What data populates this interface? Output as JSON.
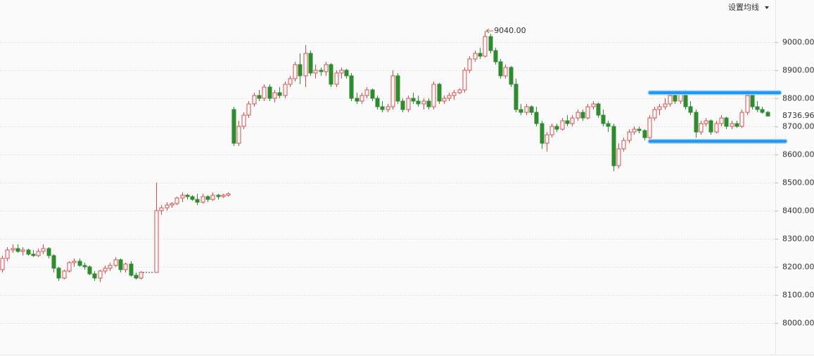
{
  "chart_data": {
    "type": "candlestick",
    "menu_label": "设置均线",
    "up_color": "#d94a4a",
    "down_color": "#2e8b2e",
    "ylim": [
      7880,
      9150
    ],
    "yticks": [
      {
        "value": 8000,
        "label": "8000.00"
      },
      {
        "value": 8100,
        "label": "8100.00"
      },
      {
        "value": 8200,
        "label": "8200.00"
      },
      {
        "value": 8300,
        "label": "8300.00"
      },
      {
        "value": 8400,
        "label": "8400.00"
      },
      {
        "value": 8500,
        "label": "8500.00"
      },
      {
        "value": 8600,
        "label": "8600.00"
      },
      {
        "value": 8700,
        "label": "8700.00"
      },
      {
        "value": 8800,
        "label": "8800.00"
      },
      {
        "value": 8900,
        "label": "8900.00"
      },
      {
        "value": 9000,
        "label": "9000.00"
      }
    ],
    "grid": true,
    "peak": {
      "value": 9040,
      "label": "9040.00"
    },
    "last_price": {
      "value": 8736.96,
      "label": "8736.96"
    },
    "levels": [
      {
        "value": 8820,
        "color": "#2196f3"
      },
      {
        "value": 8647,
        "color": "#2196f3"
      }
    ],
    "ohlc": [
      [
        8190,
        8240,
        8180,
        8230
      ],
      [
        8230,
        8270,
        8220,
        8260
      ],
      [
        8260,
        8280,
        8250,
        8265
      ],
      [
        8265,
        8280,
        8250,
        8255
      ],
      [
        8255,
        8270,
        8240,
        8260
      ],
      [
        8260,
        8265,
        8240,
        8245
      ],
      [
        8245,
        8260,
        8235,
        8240
      ],
      [
        8240,
        8265,
        8235,
        8255
      ],
      [
        8255,
        8280,
        8245,
        8265
      ],
      [
        8265,
        8270,
        8230,
        8240
      ],
      [
        8240,
        8245,
        8180,
        8195
      ],
      [
        8195,
        8200,
        8150,
        8160
      ],
      [
        8160,
        8190,
        8155,
        8185
      ],
      [
        8185,
        8220,
        8180,
        8215
      ],
      [
        8215,
        8230,
        8200,
        8220
      ],
      [
        8220,
        8230,
        8200,
        8205
      ],
      [
        8205,
        8215,
        8190,
        8200
      ],
      [
        8200,
        8205,
        8170,
        8175
      ],
      [
        8175,
        8185,
        8150,
        8160
      ],
      [
        8160,
        8190,
        8145,
        8185
      ],
      [
        8185,
        8205,
        8175,
        8195
      ],
      [
        8195,
        8215,
        8185,
        8205
      ],
      [
        8205,
        8235,
        8200,
        8225
      ],
      [
        8225,
        8230,
        8180,
        8190
      ],
      [
        8190,
        8215,
        8180,
        8210
      ],
      [
        8210,
        8220,
        8165,
        8170
      ],
      [
        8170,
        8180,
        8155,
        8160
      ],
      [
        8160,
        8185,
        8155,
        8180
      ],
      null,
      null,
      [
        8180,
        8500,
        8180,
        8400
      ],
      [
        8400,
        8420,
        8385,
        8410
      ],
      [
        8410,
        8430,
        8400,
        8420
      ],
      [
        8420,
        8430,
        8410,
        8425
      ],
      [
        8425,
        8450,
        8420,
        8445
      ],
      [
        8445,
        8465,
        8430,
        8455
      ],
      [
        8455,
        8460,
        8440,
        8450
      ],
      [
        8450,
        8455,
        8435,
        8440
      ],
      [
        8440,
        8460,
        8420,
        8430
      ],
      [
        8430,
        8460,
        8425,
        8450
      ],
      [
        8450,
        8455,
        8430,
        8440
      ],
      [
        8440,
        8465,
        8435,
        8455
      ],
      [
        8455,
        8460,
        8440,
        8450
      ],
      [
        8450,
        8460,
        8445,
        8455
      ],
      [
        8455,
        8465,
        8450,
        8460
      ],
      [
        8760,
        8770,
        8630,
        8640
      ],
      [
        8640,
        8720,
        8630,
        8700
      ],
      [
        8700,
        8750,
        8690,
        8740
      ],
      [
        8740,
        8790,
        8730,
        8780
      ],
      [
        8780,
        8820,
        8770,
        8810
      ],
      [
        8810,
        8830,
        8790,
        8800
      ],
      [
        8800,
        8850,
        8790,
        8840
      ],
      [
        8840,
        8850,
        8790,
        8800
      ],
      [
        8800,
        8830,
        8785,
        8820
      ],
      [
        8820,
        8840,
        8800,
        8810
      ],
      [
        8810,
        8860,
        8800,
        8850
      ],
      [
        8850,
        8880,
        8840,
        8870
      ],
      [
        8870,
        8930,
        8860,
        8920
      ],
      [
        8920,
        8960,
        8850,
        8880
      ],
      [
        8880,
        8990,
        8840,
        8960
      ],
      [
        8960,
        8970,
        8880,
        8890
      ],
      [
        8890,
        8920,
        8870,
        8900
      ],
      [
        8900,
        8910,
        8880,
        8895
      ],
      [
        8895,
        8930,
        8880,
        8920
      ],
      [
        8920,
        8925,
        8840,
        8850
      ],
      [
        8850,
        8900,
        8840,
        8890
      ],
      [
        8890,
        8910,
        8870,
        8900
      ],
      [
        8900,
        8905,
        8870,
        8880
      ],
      [
        8880,
        8890,
        8790,
        8800
      ],
      [
        8800,
        8820,
        8780,
        8790
      ],
      [
        8790,
        8820,
        8780,
        8810
      ],
      [
        8810,
        8840,
        8800,
        8830
      ],
      [
        8830,
        8835,
        8790,
        8800
      ],
      [
        8800,
        8810,
        8760,
        8770
      ],
      [
        8770,
        8790,
        8750,
        8760
      ],
      [
        8760,
        8780,
        8750,
        8770
      ],
      [
        8770,
        8900,
        8760,
        8880
      ],
      [
        8880,
        8890,
        8780,
        8790
      ],
      [
        8790,
        8800,
        8750,
        8760
      ],
      [
        8760,
        8810,
        8750,
        8800
      ],
      [
        8800,
        8820,
        8780,
        8790
      ],
      [
        8790,
        8810,
        8770,
        8780
      ],
      [
        8780,
        8800,
        8760,
        8790
      ],
      [
        8790,
        8800,
        8760,
        8770
      ],
      [
        8770,
        8860,
        8760,
        8850
      ],
      [
        8850,
        8855,
        8780,
        8790
      ],
      [
        8790,
        8810,
        8780,
        8800
      ],
      [
        8800,
        8820,
        8790,
        8810
      ],
      [
        8810,
        8830,
        8795,
        8820
      ],
      [
        8820,
        8835,
        8815,
        8830
      ],
      [
        8830,
        8910,
        8820,
        8900
      ],
      [
        8900,
        8950,
        8890,
        8940
      ],
      [
        8940,
        8970,
        8930,
        8960
      ],
      [
        8960,
        8980,
        8940,
        8950
      ],
      [
        8950,
        9040,
        8945,
        9020
      ],
      [
        9020,
        9030,
        8960,
        8970
      ],
      [
        8970,
        8980,
        8920,
        8930
      ],
      [
        8930,
        8940,
        8870,
        8880
      ],
      [
        8880,
        8920,
        8870,
        8910
      ],
      [
        8910,
        8915,
        8840,
        8850
      ],
      [
        8850,
        8870,
        8750,
        8760
      ],
      [
        8760,
        8780,
        8740,
        8750
      ],
      [
        8750,
        8780,
        8740,
        8770
      ],
      [
        8770,
        8775,
        8740,
        8750
      ],
      [
        8750,
        8770,
        8700,
        8710
      ],
      [
        8710,
        8720,
        8620,
        8640
      ],
      [
        8640,
        8680,
        8610,
        8670
      ],
      [
        8670,
        8710,
        8660,
        8700
      ],
      [
        8700,
        8710,
        8680,
        8690
      ],
      [
        8690,
        8730,
        8685,
        8720
      ],
      [
        8720,
        8740,
        8700,
        8710
      ],
      [
        8710,
        8740,
        8700,
        8730
      ],
      [
        8730,
        8760,
        8720,
        8750
      ],
      [
        8750,
        8760,
        8720,
        8730
      ],
      [
        8730,
        8780,
        8725,
        8770
      ],
      [
        8770,
        8790,
        8760,
        8780
      ],
      [
        8780,
        8785,
        8730,
        8740
      ],
      [
        8740,
        8760,
        8700,
        8710
      ],
      [
        8710,
        8720,
        8680,
        8700
      ],
      [
        8700,
        8710,
        8540,
        8560
      ],
      [
        8560,
        8640,
        8550,
        8620
      ],
      [
        8620,
        8660,
        8610,
        8650
      ],
      [
        8650,
        8690,
        8640,
        8680
      ],
      [
        8680,
        8700,
        8670,
        8690
      ],
      [
        8690,
        8700,
        8675,
        8685
      ],
      [
        8685,
        8690,
        8650,
        8660
      ],
      [
        8660,
        8740,
        8655,
        8730
      ],
      [
        8730,
        8770,
        8720,
        8760
      ],
      [
        8760,
        8780,
        8740,
        8770
      ],
      [
        8770,
        8800,
        8760,
        8780
      ],
      [
        8780,
        8820,
        8770,
        8810
      ],
      [
        8810,
        8820,
        8780,
        8790
      ],
      [
        8790,
        8820,
        8780,
        8815
      ],
      [
        8815,
        8830,
        8760,
        8770
      ],
      [
        8770,
        8790,
        8740,
        8750
      ],
      [
        8750,
        8760,
        8660,
        8680
      ],
      [
        8680,
        8720,
        8670,
        8710
      ],
      [
        8710,
        8730,
        8700,
        8720
      ],
      [
        8720,
        8725,
        8670,
        8680
      ],
      [
        8680,
        8720,
        8675,
        8710
      ],
      [
        8710,
        8740,
        8700,
        8730
      ],
      [
        8730,
        8735,
        8690,
        8700
      ],
      [
        8700,
        8720,
        8690,
        8710
      ],
      [
        8710,
        8720,
        8695,
        8700
      ],
      [
        8700,
        8760,
        8695,
        8750
      ],
      [
        8750,
        8830,
        8740,
        8810
      ],
      [
        8810,
        8820,
        8760,
        8770
      ],
      [
        8770,
        8790,
        8750,
        8760
      ],
      [
        8760,
        8770,
        8745,
        8750
      ],
      [
        8750,
        8755,
        8735,
        8736.96
      ]
    ]
  }
}
